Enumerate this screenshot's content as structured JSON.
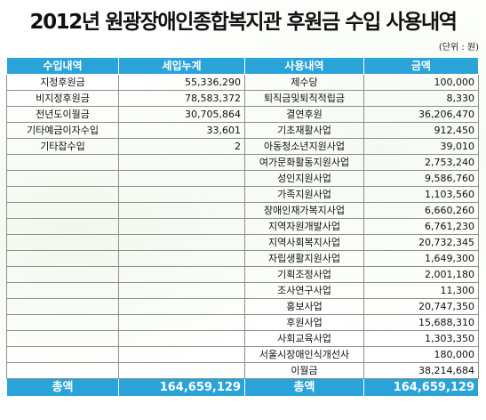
{
  "title": "2012년 원광장애인종합복지관 후원금 수입 사용내역",
  "unit": "(단위 : 원)",
  "headers": [
    "수입내역",
    "세입누계",
    "사용내역",
    "금액"
  ],
  "rows": [
    [
      "지정후원금",
      "55,336,290",
      "제수당",
      "100,000"
    ],
    [
      "비지정후원금",
      "78,583,372",
      "퇴직금및퇴직적립금",
      "8,330"
    ],
    [
      "전년도이월금",
      "30,705,864",
      "결연후원",
      "36,206,470"
    ],
    [
      "기타예금이자수입",
      "33,601",
      "기초재활사업",
      "912,450"
    ],
    [
      "기타잡수입",
      "2",
      "아동청소년지원사업",
      "39,010"
    ],
    [
      "",
      "",
      "여가문화활동지원사업",
      "2,753,240"
    ],
    [
      "",
      "",
      "성인지원사업",
      "9,586,760"
    ],
    [
      "",
      "",
      "가족지원사업",
      "1,103,560"
    ],
    [
      "",
      "",
      "장애인재가복지사업",
      "6,660,260"
    ],
    [
      "",
      "",
      "지역자원개발사업",
      "6,761,230"
    ],
    [
      "",
      "",
      "지역사회복지사업",
      "20,732,345"
    ],
    [
      "",
      "",
      "자립생활지원사업",
      "1,649,300"
    ],
    [
      "",
      "",
      "기획조정사업",
      "2,001,180"
    ],
    [
      "",
      "",
      "조사연구사업",
      "11,300"
    ],
    [
      "",
      "",
      "홍보사업",
      "20,747,350"
    ],
    [
      "",
      "",
      "후원사업",
      "15,688,310"
    ],
    [
      "",
      "",
      "사회교육사업",
      "1,303,350"
    ],
    [
      "",
      "",
      "서울시장애인식개선사",
      "180,000"
    ],
    [
      "",
      "",
      "이월금",
      "38,214,684"
    ]
  ],
  "footer": [
    "총액",
    "164,659,129",
    "총액",
    "164,659,129"
  ]
}
